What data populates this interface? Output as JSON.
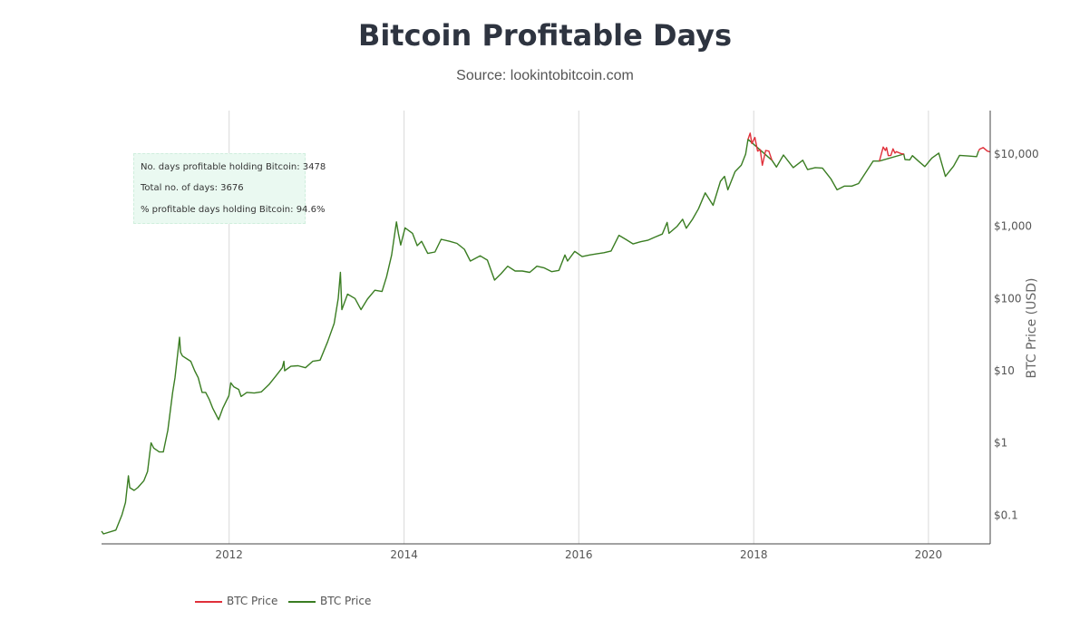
{
  "chart_data": {
    "type": "line",
    "title": "Bitcoin Profitable Days",
    "subtitle": "Source: lookintobitcoin.com",
    "xlabel": "",
    "ylabel": "BTC Price (USD)",
    "y_scale": "log",
    "ylim": [
      0.04,
      40000
    ],
    "xlim": [
      "2010-07-17",
      "2020-09-15"
    ],
    "x_ticks": [
      {
        "date": "2012-01-01",
        "label": "2012"
      },
      {
        "date": "2014-01-01",
        "label": "2014"
      },
      {
        "date": "2016-01-01",
        "label": "2016"
      },
      {
        "date": "2018-01-01",
        "label": "2018"
      },
      {
        "date": "2020-01-01",
        "label": "2020"
      }
    ],
    "y_ticks": [
      {
        "value": 0.1,
        "label": "$0.1"
      },
      {
        "value": 1,
        "label": "$1"
      },
      {
        "value": 10,
        "label": "$10"
      },
      {
        "value": 100,
        "label": "$100"
      },
      {
        "value": 1000,
        "label": "$1,000"
      },
      {
        "value": 10000,
        "label": "$10,000"
      }
    ],
    "grid": {
      "x": true,
      "y": false
    },
    "legend_position": "bottom-left",
    "series": [
      {
        "name": "BTC Price",
        "color": "#e0303a",
        "points": [
          [
            "2017-12-08",
            16000
          ],
          [
            "2017-12-17",
            19500
          ],
          [
            "2017-12-24",
            14000
          ],
          [
            "2018-01-06",
            17000
          ],
          [
            "2018-01-17",
            11000
          ],
          [
            "2018-01-28",
            11500
          ],
          [
            "2018-02-06",
            7000
          ],
          [
            "2018-02-20",
            11200
          ],
          [
            "2018-03-05",
            11000
          ],
          [
            "2018-03-18",
            8200
          ],
          [
            "2019-06-10",
            8000
          ],
          [
            "2019-06-26",
            12500
          ],
          [
            "2019-07-05",
            11200
          ],
          [
            "2019-07-10",
            12300
          ],
          [
            "2019-07-17",
            9500
          ],
          [
            "2019-07-28",
            9600
          ],
          [
            "2019-08-06",
            11800
          ],
          [
            "2019-08-14",
            10300
          ],
          [
            "2019-08-20",
            10800
          ],
          [
            "2019-09-10",
            10100
          ],
          [
            "2019-09-20",
            10000
          ],
          [
            "2020-07-28",
            11000
          ],
          [
            "2020-08-02",
            11700
          ],
          [
            "2020-08-17",
            12300
          ],
          [
            "2020-09-03",
            11000
          ],
          [
            "2020-09-15",
            10700
          ]
        ]
      },
      {
        "name": "BTC Price",
        "color": "#3a7d22",
        "points": [
          [
            "2010-07-17",
            0.06
          ],
          [
            "2010-07-25",
            0.055
          ],
          [
            "2010-09-15",
            0.062
          ],
          [
            "2010-10-10",
            0.1
          ],
          [
            "2010-10-25",
            0.15
          ],
          [
            "2010-11-06",
            0.35
          ],
          [
            "2010-11-12",
            0.24
          ],
          [
            "2010-11-30",
            0.22
          ],
          [
            "2010-12-15",
            0.24
          ],
          [
            "2011-01-10",
            0.3
          ],
          [
            "2011-01-25",
            0.4
          ],
          [
            "2011-02-09",
            1.0
          ],
          [
            "2011-02-20",
            0.85
          ],
          [
            "2011-03-15",
            0.75
          ],
          [
            "2011-04-01",
            0.75
          ],
          [
            "2011-04-20",
            1.5
          ],
          [
            "2011-05-10",
            5
          ],
          [
            "2011-05-20",
            8
          ],
          [
            "2011-06-08",
            29
          ],
          [
            "2011-06-12",
            18
          ],
          [
            "2011-06-20",
            16
          ],
          [
            "2011-07-10",
            14.5
          ],
          [
            "2011-07-25",
            13.5
          ],
          [
            "2011-08-10",
            10
          ],
          [
            "2011-08-25",
            8
          ],
          [
            "2011-09-10",
            5
          ],
          [
            "2011-09-25",
            5
          ],
          [
            "2011-10-10",
            4
          ],
          [
            "2011-10-25",
            3
          ],
          [
            "2011-11-18",
            2.1
          ],
          [
            "2011-12-05",
            3
          ],
          [
            "2011-12-31",
            4.5
          ],
          [
            "2012-01-08",
            6.8
          ],
          [
            "2012-01-20",
            6
          ],
          [
            "2012-02-10",
            5.5
          ],
          [
            "2012-02-20",
            4.4
          ],
          [
            "2012-03-15",
            5
          ],
          [
            "2012-04-15",
            4.9
          ],
          [
            "2012-05-15",
            5.1
          ],
          [
            "2012-06-15",
            6.4
          ],
          [
            "2012-07-15",
            8.5
          ],
          [
            "2012-08-10",
            11
          ],
          [
            "2012-08-17",
            13.5
          ],
          [
            "2012-08-20",
            10
          ],
          [
            "2012-09-15",
            11.5
          ],
          [
            "2012-10-15",
            11.7
          ],
          [
            "2012-11-15",
            11
          ],
          [
            "2012-12-15",
            13.5
          ],
          [
            "2013-01-15",
            14
          ],
          [
            "2013-02-15",
            25
          ],
          [
            "2013-03-15",
            45
          ],
          [
            "2013-04-01",
            100
          ],
          [
            "2013-04-10",
            230
          ],
          [
            "2013-04-16",
            70
          ],
          [
            "2013-05-10",
            115
          ],
          [
            "2013-06-10",
            100
          ],
          [
            "2013-07-05",
            70
          ],
          [
            "2013-08-01",
            98
          ],
          [
            "2013-09-01",
            130
          ],
          [
            "2013-10-01",
            125
          ],
          [
            "2013-10-20",
            200
          ],
          [
            "2013-11-10",
            400
          ],
          [
            "2013-11-30",
            1150
          ],
          [
            "2013-12-08",
            800
          ],
          [
            "2013-12-18",
            550
          ],
          [
            "2014-01-05",
            950
          ],
          [
            "2014-02-05",
            800
          ],
          [
            "2014-02-25",
            540
          ],
          [
            "2014-03-15",
            620
          ],
          [
            "2014-04-10",
            420
          ],
          [
            "2014-05-10",
            440
          ],
          [
            "2014-06-05",
            660
          ],
          [
            "2014-07-10",
            620
          ],
          [
            "2014-08-10",
            580
          ],
          [
            "2014-09-10",
            480
          ],
          [
            "2014-10-05",
            330
          ],
          [
            "2014-11-15",
            390
          ],
          [
            "2014-12-15",
            340
          ],
          [
            "2015-01-14",
            180
          ],
          [
            "2015-02-10",
            220
          ],
          [
            "2015-03-10",
            280
          ],
          [
            "2015-04-10",
            240
          ],
          [
            "2015-05-10",
            240
          ],
          [
            "2015-06-10",
            230
          ],
          [
            "2015-07-10",
            280
          ],
          [
            "2015-08-10",
            265
          ],
          [
            "2015-09-10",
            235
          ],
          [
            "2015-10-10",
            245
          ],
          [
            "2015-11-04",
            400
          ],
          [
            "2015-11-15",
            330
          ],
          [
            "2015-12-15",
            450
          ],
          [
            "2016-01-15",
            380
          ],
          [
            "2016-02-15",
            400
          ],
          [
            "2016-03-15",
            415
          ],
          [
            "2016-04-15",
            430
          ],
          [
            "2016-05-15",
            455
          ],
          [
            "2016-06-17",
            750
          ],
          [
            "2016-07-15",
            660
          ],
          [
            "2016-08-15",
            570
          ],
          [
            "2016-09-15",
            610
          ],
          [
            "2016-10-15",
            640
          ],
          [
            "2016-11-15",
            710
          ],
          [
            "2016-12-15",
            780
          ],
          [
            "2017-01-04",
            1130
          ],
          [
            "2017-01-12",
            800
          ],
          [
            "2017-02-15",
            1000
          ],
          [
            "2017-03-10",
            1250
          ],
          [
            "2017-03-25",
            940
          ],
          [
            "2017-04-20",
            1250
          ],
          [
            "2017-05-15",
            1750
          ],
          [
            "2017-06-12",
            2900
          ],
          [
            "2017-07-15",
            1950
          ],
          [
            "2017-08-15",
            4200
          ],
          [
            "2017-09-01",
            4900
          ],
          [
            "2017-09-15",
            3200
          ],
          [
            "2017-10-15",
            5700
          ],
          [
            "2017-11-10",
            7000
          ],
          [
            "2017-11-28",
            10000
          ],
          [
            "2017-12-08",
            16000
          ],
          [
            "2018-03-18",
            8200
          ],
          [
            "2018-04-06",
            6600
          ],
          [
            "2018-05-05",
            9700
          ],
          [
            "2018-06-15",
            6500
          ],
          [
            "2018-07-25",
            8200
          ],
          [
            "2018-08-14",
            6100
          ],
          [
            "2018-09-15",
            6500
          ],
          [
            "2018-10-15",
            6400
          ],
          [
            "2018-11-20",
            4500
          ],
          [
            "2018-12-15",
            3200
          ],
          [
            "2019-01-15",
            3600
          ],
          [
            "2019-02-15",
            3600
          ],
          [
            "2019-03-15",
            3900
          ],
          [
            "2019-04-05",
            5000
          ],
          [
            "2019-05-15",
            8000
          ],
          [
            "2019-06-10",
            8000
          ],
          [
            "2019-09-20",
            10000
          ],
          [
            "2019-09-25",
            8400
          ],
          [
            "2019-10-15",
            8300
          ],
          [
            "2019-10-26",
            9500
          ],
          [
            "2019-11-20",
            8000
          ],
          [
            "2019-12-17",
            6700
          ],
          [
            "2020-01-15",
            8800
          ],
          [
            "2020-02-13",
            10300
          ],
          [
            "2020-03-12",
            4900
          ],
          [
            "2020-04-15",
            6800
          ],
          [
            "2020-05-10",
            9600
          ],
          [
            "2020-06-15",
            9400
          ],
          [
            "2020-07-20",
            9200
          ],
          [
            "2020-07-28",
            11000
          ]
        ]
      }
    ],
    "legend": [
      {
        "label": "BTC Price",
        "color": "#e0303a"
      },
      {
        "label": "BTC Price",
        "color": "#3a7d22"
      }
    ]
  },
  "stats": {
    "line1": "No. days profitable holding Bitcoin: 3478",
    "line2": "Total no. of days: 3676",
    "line3": "% profitable days holding Bitcoin: 94.6%"
  }
}
